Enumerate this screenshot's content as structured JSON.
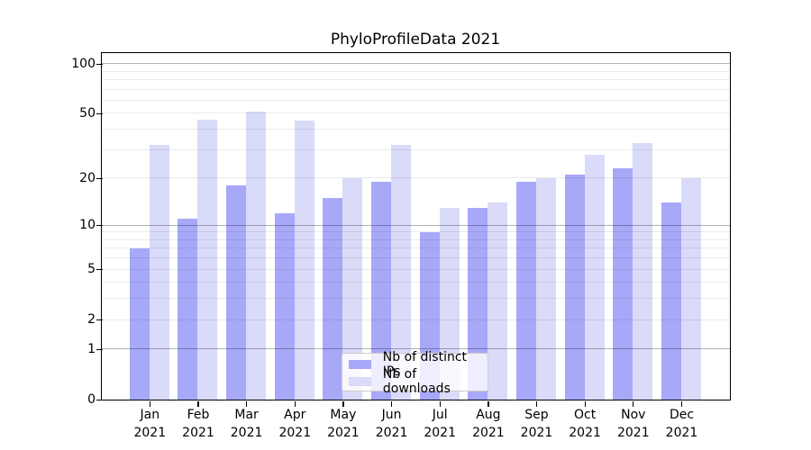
{
  "title": "PhyloProfileData 2021",
  "chart_data": {
    "type": "bar",
    "title": "PhyloProfileData 2021",
    "categories": [
      "Jan 2021",
      "Feb 2021",
      "Mar 2021",
      "Apr 2021",
      "May 2021",
      "Jun 2021",
      "Jul 2021",
      "Aug 2021",
      "Sep 2021",
      "Oct 2021",
      "Nov 2021",
      "Dec 2021"
    ],
    "series": [
      {
        "name": "Nb of distinct IPs",
        "color": "#a8a8f8",
        "values": [
          7,
          11,
          18,
          12,
          15,
          19,
          9,
          13,
          19,
          21,
          23,
          14
        ]
      },
      {
        "name": "Nb of downloads",
        "color": "#dadaf9",
        "values": [
          32,
          46,
          51,
          45,
          20,
          32,
          13,
          14,
          20,
          28,
          33,
          20
        ]
      }
    ],
    "xlabel": "",
    "ylabel": "",
    "yscale": "log1p",
    "ylim": [
      0,
      115
    ],
    "y_tick_values": [
      0,
      1,
      2,
      5,
      10,
      20,
      50,
      100
    ],
    "y_major_gridlines": [
      1,
      10,
      100
    ],
    "y_minor_gridlines": [
      2,
      3,
      4,
      5,
      6,
      7,
      8,
      9,
      20,
      30,
      40,
      50,
      60,
      70,
      80,
      90
    ],
    "grid": true,
    "legend_position": "lower center"
  },
  "colors": {
    "background": "#ffffff",
    "axis": "#000000",
    "major_grid": "#b3b3b3",
    "minor_grid": "#ebebeb",
    "legend_border": "#cccccc",
    "legend_background": "rgba(255,255,255,0.8)"
  }
}
